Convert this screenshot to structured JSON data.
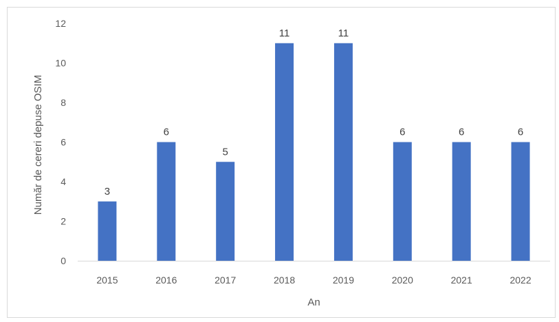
{
  "chart_data": {
    "type": "bar",
    "title": "",
    "xlabel": "An",
    "ylabel": "Număr de cereri depuse OSIM",
    "categories": [
      "2015",
      "2016",
      "2017",
      "2018",
      "2019",
      "2020",
      "2021",
      "2022"
    ],
    "series": [
      {
        "values": [
          3,
          6,
          5,
          11,
          11,
          6,
          6,
          6
        ]
      }
    ],
    "data_labels": [
      "3",
      "6",
      "5",
      "11",
      "11",
      "6",
      "6",
      "6"
    ],
    "ylim": [
      0,
      12
    ],
    "yticks": [
      "0",
      "2",
      "4",
      "6",
      "8",
      "10",
      "12"
    ],
    "grid": false,
    "legend": "none",
    "bar_color": "#4472c4"
  }
}
